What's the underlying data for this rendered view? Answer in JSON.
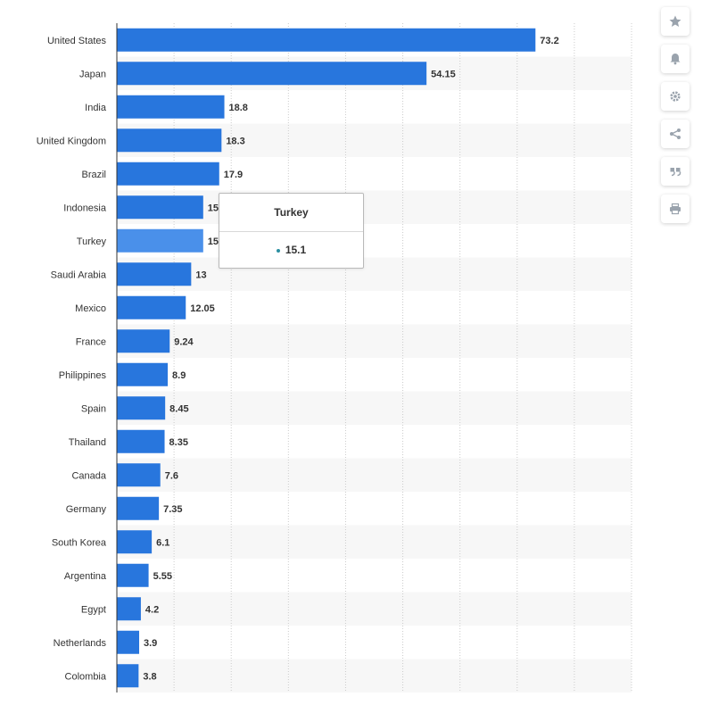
{
  "chart_data": {
    "type": "bar",
    "orientation": "horizontal",
    "categories": [
      "United States",
      "Japan",
      "India",
      "United Kingdom",
      "Brazil",
      "Indonesia",
      "Turkey",
      "Saudi Arabia",
      "Mexico",
      "France",
      "Philippines",
      "Spain",
      "Thailand",
      "Canada",
      "Germany",
      "South Korea",
      "Argentina",
      "Egypt",
      "Netherlands",
      "Colombia"
    ],
    "values": [
      73.2,
      54.15,
      18.8,
      18.3,
      17.9,
      15.1,
      15.1,
      13,
      12.05,
      9.24,
      8.9,
      8.45,
      8.35,
      7.6,
      7.35,
      6.1,
      5.55,
      4.2,
      3.9,
      3.8
    ],
    "value_labels": [
      "73.2",
      "54.15",
      "18.8",
      "18.3",
      "17.9",
      "15",
      "15",
      "13",
      "12.05",
      "9.24",
      "8.9",
      "8.45",
      "8.35",
      "7.6",
      "7.35",
      "6.1",
      "5.55",
      "4.2",
      "3.9",
      "3.8"
    ],
    "xlim": [
      0,
      90
    ],
    "grid": true,
    "highlighted_category": "Turkey",
    "colors": {
      "bar": "#2876dd",
      "bar_highlight": "#4a90ea",
      "band": "#f7f7f7"
    }
  },
  "tooltip": {
    "title": "Turkey",
    "value": "15.1"
  },
  "toolbar": {
    "buttons": [
      {
        "icon": "star-icon"
      },
      {
        "icon": "bell-icon"
      },
      {
        "icon": "gear-icon"
      },
      {
        "icon": "share-icon"
      },
      {
        "icon": "quote-icon"
      },
      {
        "icon": "print-icon"
      }
    ]
  }
}
